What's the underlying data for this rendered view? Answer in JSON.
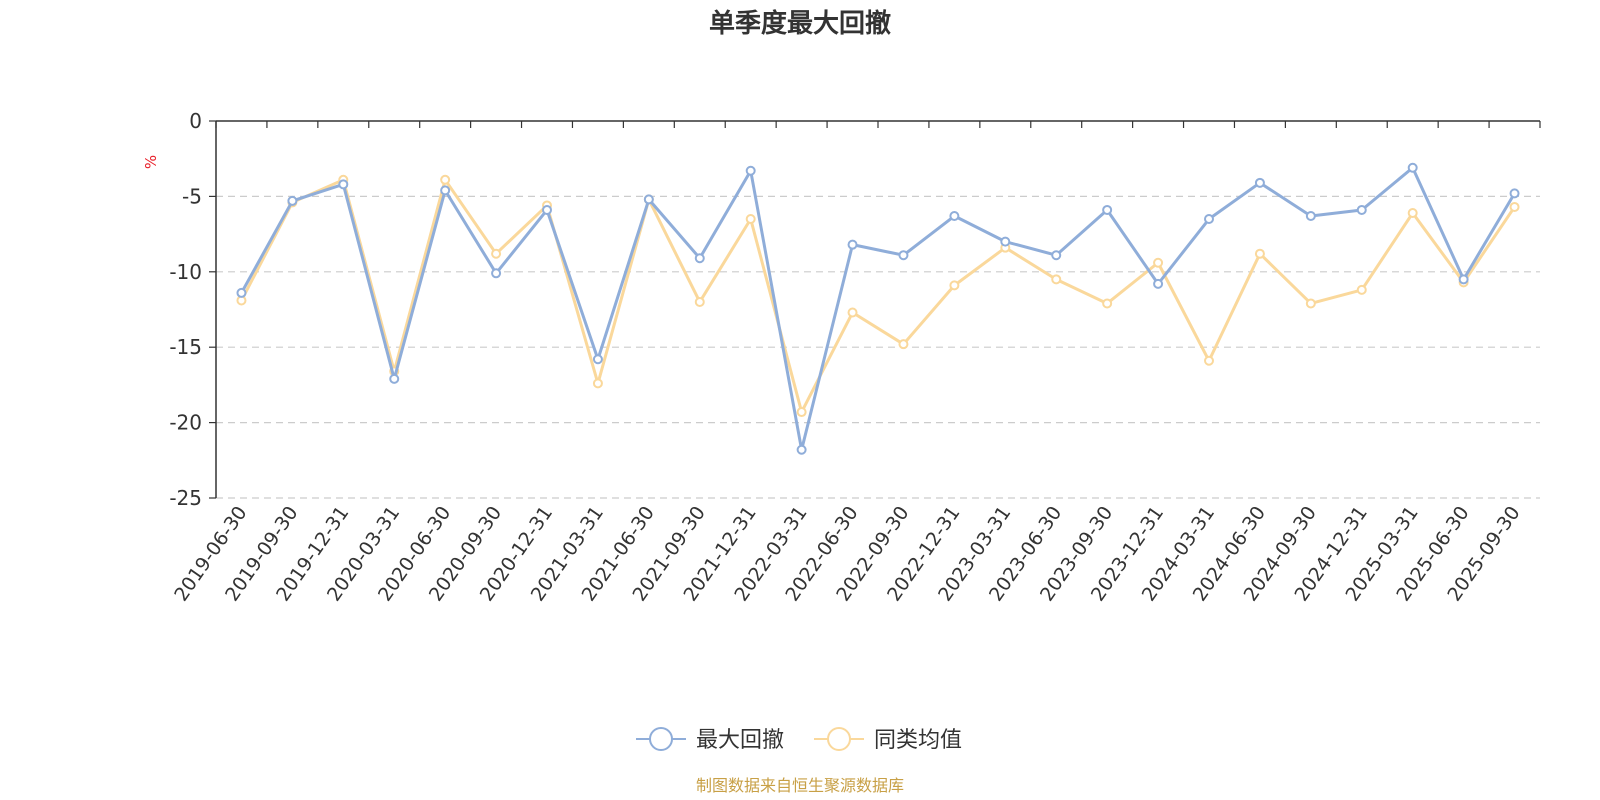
{
  "chart_data": {
    "type": "line",
    "title": "单季度最大回撤",
    "ylabel": "%",
    "ylim": [
      -25,
      0
    ],
    "yticks": [
      0,
      -5,
      -10,
      -15,
      -20,
      -25
    ],
    "grid": true,
    "legend_position": "bottom-center",
    "categories": [
      "2019-06-30",
      "2019-09-30",
      "2019-12-31",
      "2020-03-31",
      "2020-06-30",
      "2020-09-30",
      "2020-12-31",
      "2021-03-31",
      "2021-06-30",
      "2021-09-30",
      "2021-12-31",
      "2022-03-31",
      "2022-06-30",
      "2022-09-30",
      "2022-12-31",
      "2023-03-31",
      "2023-06-30",
      "2023-09-30",
      "2023-12-31",
      "2024-03-31",
      "2024-06-30",
      "2024-09-30",
      "2024-12-31",
      "2025-03-31",
      "2025-06-30",
      "2025-09-30"
    ],
    "series": [
      {
        "name": "最大回撤",
        "color": "#8fadd9",
        "values": [
          -11.4,
          -5.3,
          -4.2,
          -17.1,
          -4.6,
          -10.1,
          -5.9,
          -15.8,
          -5.2,
          -9.1,
          -3.3,
          -21.8,
          -8.2,
          -8.9,
          -6.3,
          -8.0,
          -8.9,
          -5.9,
          -10.8,
          -6.5,
          -4.1,
          -6.3,
          -5.9,
          -3.1,
          -10.5,
          -4.8
        ]
      },
      {
        "name": "同类均值",
        "color": "#fad89b",
        "values": [
          -11.9,
          -5.4,
          -3.9,
          -16.6,
          -3.9,
          -8.8,
          -5.6,
          -17.4,
          -5.2,
          -12.0,
          -6.5,
          -19.3,
          -12.7,
          -14.8,
          -10.9,
          -8.4,
          -10.5,
          -12.1,
          -9.4,
          -15.9,
          -8.8,
          -12.1,
          -11.2,
          -6.1,
          -10.7,
          -5.7
        ]
      }
    ],
    "source_note": "制图数据来自恒生聚源数据库",
    "unit_color": "#e8202a",
    "source_color": "#c8a046"
  }
}
